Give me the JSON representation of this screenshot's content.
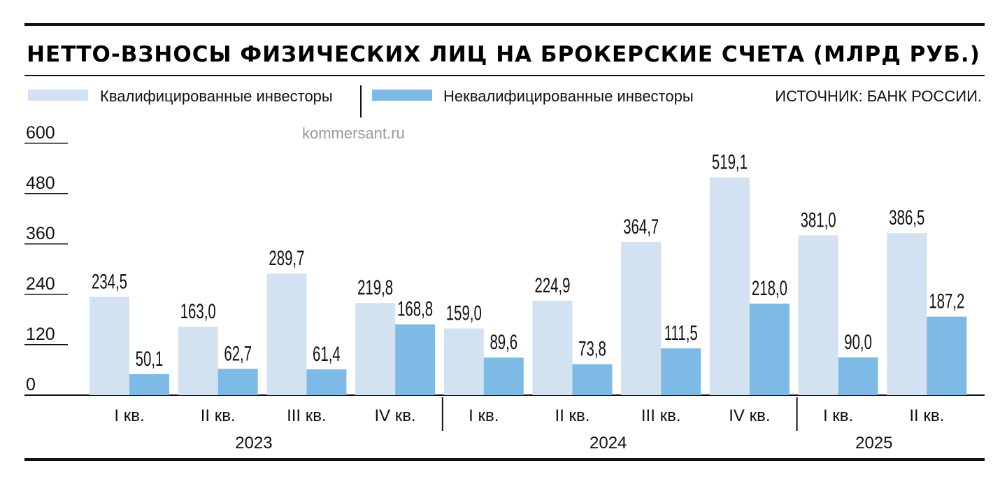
{
  "chart_data": {
    "type": "bar",
    "title": "НЕТТО-ВЗНОСЫ ФИЗИЧЕСКИХ ЛИЦ НА БРОКЕРСКИЕ СЧЕТА (МЛРД РУБ.)",
    "source": "ИСТОЧНИК: БАНК РОССИИ.",
    "watermark": "kommersant.ru",
    "categories": [
      "I кв.",
      "II кв.",
      "III кв.",
      "IV кв.",
      "I кв.",
      "II кв.",
      "III кв.",
      "IV кв.",
      "I кв.",
      "II кв."
    ],
    "years": [
      {
        "label": "2023",
        "quarters": 4
      },
      {
        "label": "2024",
        "quarters": 4
      },
      {
        "label": "2025",
        "quarters": 2
      }
    ],
    "series": [
      {
        "name": "Квалифицированные инвесторы",
        "color": "#d3e2f0",
        "values": [
          234.5,
          163.0,
          289.7,
          219.8,
          159.0,
          224.9,
          364.7,
          519.1,
          381.0,
          386.5
        ],
        "labels": [
          "234,5",
          "163,0",
          "289,7",
          "219,8",
          "159,0",
          "224,9",
          "364,7",
          "519,1",
          "381,0",
          "386,5"
        ]
      },
      {
        "name": "Неквалифицированные инвесторы",
        "color": "#7dbbe6",
        "values": [
          50.1,
          62.7,
          61.4,
          168.8,
          89.6,
          73.8,
          111.5,
          218.0,
          90.0,
          187.2
        ],
        "labels": [
          "50,1",
          "62,7",
          "61,4",
          "168,8",
          "89,6",
          "73,8",
          "111,5",
          "218,0",
          "90,0",
          "187,2"
        ]
      }
    ],
    "yticks": [
      "0",
      "120",
      "240",
      "360",
      "480",
      "600"
    ],
    "ylim": [
      0,
      600
    ],
    "grid": false,
    "legend": "top"
  }
}
